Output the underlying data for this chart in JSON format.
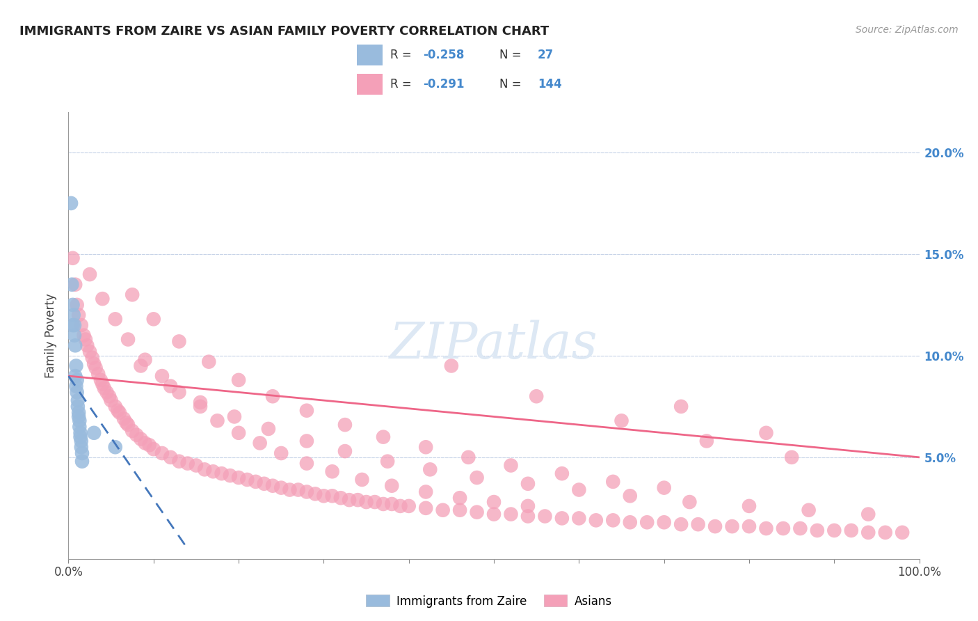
{
  "title": "IMMIGRANTS FROM ZAIRE VS ASIAN FAMILY POVERTY CORRELATION CHART",
  "source": "Source: ZipAtlas.com",
  "ylabel": "Family Poverty",
  "xlim": [
    0,
    1.0
  ],
  "ylim": [
    0.0,
    0.22
  ],
  "yticks": [
    0.0,
    0.05,
    0.1,
    0.15,
    0.2
  ],
  "ytick_labels": [
    "",
    "5.0%",
    "10.0%",
    "15.0%",
    "20.0%"
  ],
  "xticks": [
    0.0,
    0.1,
    0.2,
    0.3,
    0.4,
    0.5,
    0.6,
    0.7,
    0.8,
    0.9,
    1.0
  ],
  "xtick_labels": [
    "0.0%",
    "",
    "",
    "",
    "",
    "",
    "",
    "",
    "",
    "",
    "100.0%"
  ],
  "color_blue": "#99bbdd",
  "color_pink": "#f4a0b8",
  "color_blue_line": "#4477bb",
  "color_pink_line": "#ee6688",
  "color_grid": "#c8d4e8",
  "watermark_color": "#dde8f4",
  "zaire_x": [
    0.003,
    0.004,
    0.005,
    0.005,
    0.006,
    0.007,
    0.007,
    0.008,
    0.008,
    0.009,
    0.009,
    0.01,
    0.01,
    0.011,
    0.011,
    0.012,
    0.012,
    0.013,
    0.013,
    0.014,
    0.014,
    0.015,
    0.015,
    0.016,
    0.016,
    0.03,
    0.055
  ],
  "zaire_y": [
    0.175,
    0.135,
    0.125,
    0.115,
    0.12,
    0.115,
    0.11,
    0.105,
    0.09,
    0.095,
    0.085,
    0.082,
    0.088,
    0.078,
    0.075,
    0.072,
    0.07,
    0.065,
    0.068,
    0.06,
    0.062,
    0.058,
    0.055,
    0.052,
    0.048,
    0.062,
    0.055
  ],
  "asian_x": [
    0.005,
    0.008,
    0.01,
    0.012,
    0.015,
    0.018,
    0.02,
    0.022,
    0.025,
    0.028,
    0.03,
    0.032,
    0.035,
    0.038,
    0.04,
    0.042,
    0.045,
    0.048,
    0.05,
    0.055,
    0.058,
    0.06,
    0.065,
    0.068,
    0.07,
    0.075,
    0.08,
    0.085,
    0.09,
    0.095,
    0.1,
    0.11,
    0.12,
    0.13,
    0.14,
    0.15,
    0.16,
    0.17,
    0.18,
    0.19,
    0.2,
    0.21,
    0.22,
    0.23,
    0.24,
    0.25,
    0.26,
    0.27,
    0.28,
    0.29,
    0.3,
    0.31,
    0.32,
    0.33,
    0.34,
    0.35,
    0.36,
    0.37,
    0.38,
    0.39,
    0.4,
    0.42,
    0.44,
    0.46,
    0.48,
    0.5,
    0.52,
    0.54,
    0.56,
    0.58,
    0.6,
    0.62,
    0.64,
    0.66,
    0.68,
    0.7,
    0.72,
    0.74,
    0.76,
    0.78,
    0.8,
    0.82,
    0.84,
    0.86,
    0.88,
    0.9,
    0.92,
    0.94,
    0.96,
    0.98,
    0.025,
    0.04,
    0.055,
    0.07,
    0.09,
    0.11,
    0.13,
    0.155,
    0.175,
    0.2,
    0.225,
    0.25,
    0.28,
    0.31,
    0.345,
    0.38,
    0.42,
    0.46,
    0.5,
    0.54,
    0.075,
    0.1,
    0.13,
    0.165,
    0.2,
    0.24,
    0.28,
    0.325,
    0.37,
    0.42,
    0.47,
    0.52,
    0.58,
    0.64,
    0.7,
    0.085,
    0.12,
    0.155,
    0.195,
    0.235,
    0.28,
    0.325,
    0.375,
    0.425,
    0.48,
    0.54,
    0.6,
    0.66,
    0.73,
    0.8,
    0.87,
    0.94,
    0.45,
    0.55,
    0.65,
    0.75,
    0.85,
    0.72,
    0.82
  ],
  "asian_y": [
    0.148,
    0.135,
    0.125,
    0.12,
    0.115,
    0.11,
    0.108,
    0.105,
    0.102,
    0.099,
    0.096,
    0.094,
    0.091,
    0.088,
    0.086,
    0.084,
    0.082,
    0.08,
    0.078,
    0.075,
    0.073,
    0.072,
    0.069,
    0.067,
    0.066,
    0.063,
    0.061,
    0.059,
    0.057,
    0.056,
    0.054,
    0.052,
    0.05,
    0.048,
    0.047,
    0.046,
    0.044,
    0.043,
    0.042,
    0.041,
    0.04,
    0.039,
    0.038,
    0.037,
    0.036,
    0.035,
    0.034,
    0.034,
    0.033,
    0.032,
    0.031,
    0.031,
    0.03,
    0.029,
    0.029,
    0.028,
    0.028,
    0.027,
    0.027,
    0.026,
    0.026,
    0.025,
    0.024,
    0.024,
    0.023,
    0.022,
    0.022,
    0.021,
    0.021,
    0.02,
    0.02,
    0.019,
    0.019,
    0.018,
    0.018,
    0.018,
    0.017,
    0.017,
    0.016,
    0.016,
    0.016,
    0.015,
    0.015,
    0.015,
    0.014,
    0.014,
    0.014,
    0.013,
    0.013,
    0.013,
    0.14,
    0.128,
    0.118,
    0.108,
    0.098,
    0.09,
    0.082,
    0.075,
    0.068,
    0.062,
    0.057,
    0.052,
    0.047,
    0.043,
    0.039,
    0.036,
    0.033,
    0.03,
    0.028,
    0.026,
    0.13,
    0.118,
    0.107,
    0.097,
    0.088,
    0.08,
    0.073,
    0.066,
    0.06,
    0.055,
    0.05,
    0.046,
    0.042,
    0.038,
    0.035,
    0.095,
    0.085,
    0.077,
    0.07,
    0.064,
    0.058,
    0.053,
    0.048,
    0.044,
    0.04,
    0.037,
    0.034,
    0.031,
    0.028,
    0.026,
    0.024,
    0.022,
    0.095,
    0.08,
    0.068,
    0.058,
    0.05,
    0.075,
    0.062
  ],
  "pink_line_x": [
    0.0,
    1.0
  ],
  "pink_line_y": [
    0.09,
    0.05
  ],
  "blue_line_x": [
    0.0,
    0.14
  ],
  "blue_line_y": [
    0.09,
    0.005
  ]
}
